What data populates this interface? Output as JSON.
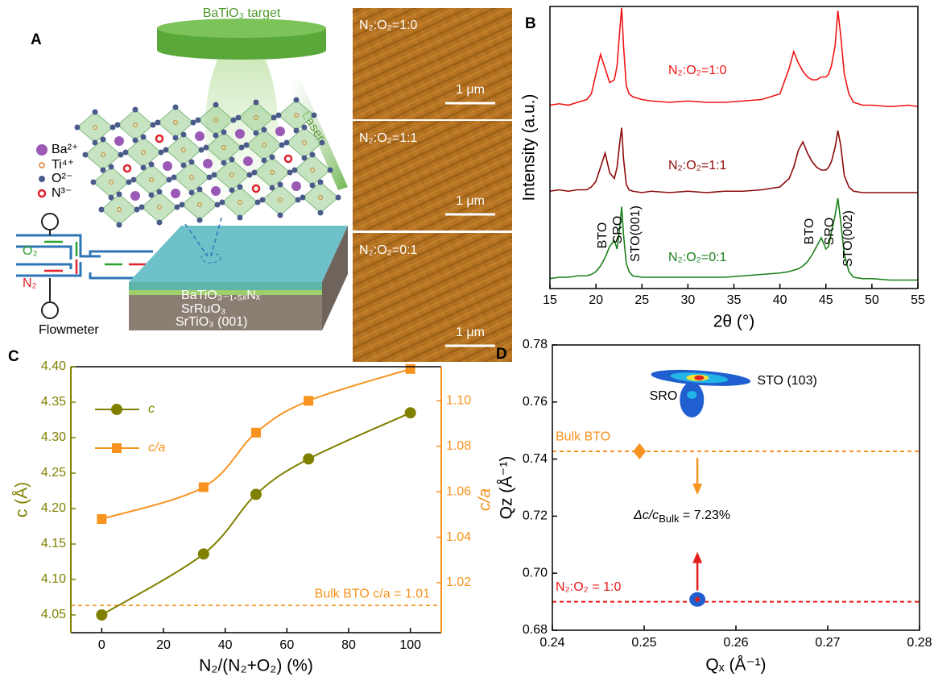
{
  "panel_a": {
    "label": "A",
    "target": "BaTiO₃ target",
    "laser": "Laser",
    "ions": [
      "Ba²⁺",
      "Ti⁴⁺",
      "O²⁻",
      "N³⁻"
    ],
    "gases": [
      "O₂",
      "N₂"
    ],
    "flowmeter": "Flowmeter",
    "layers": [
      "BaTiO₃₋₁.₅ₓNₓ",
      "SrRuO₃",
      "SrTiO₃ (001)"
    ]
  },
  "afm": [
    {
      "label": "N₂:O₂=1:0",
      "scale": "1 μm"
    },
    {
      "label": "N₂:O₂=1:1",
      "scale": "1 μm"
    },
    {
      "label": "N₂:O₂=0:1",
      "scale": "1 μm"
    }
  ],
  "chart_data": [
    {
      "type": "line",
      "label": "B",
      "xlabel": "2θ (°)",
      "ylabel": "Intensity (a.u.)",
      "xlim": [
        15,
        55
      ],
      "xticks": [
        15,
        20,
        25,
        30,
        35,
        40,
        45,
        50,
        55
      ],
      "ylim": [
        0,
        10
      ],
      "x": [
        15,
        16,
        17,
        18,
        19,
        19.5,
        20,
        20.5,
        21,
        21.5,
        22,
        22.3,
        22.6,
        22.8,
        23,
        23.3,
        23.6,
        24,
        25,
        26,
        28,
        30,
        32,
        34,
        36,
        38,
        40,
        41,
        41.5,
        42,
        42.5,
        43,
        43.5,
        44,
        44.5,
        45,
        45.3,
        45.6,
        46,
        46.3,
        46.6,
        47,
        47.5,
        48,
        49,
        50,
        52,
        54,
        55
      ],
      "series": [
        {
          "name": "N₂:O₂=1:0",
          "color": "#f01414",
          "values": [
            6.5,
            6.55,
            6.5,
            6.6,
            6.7,
            6.9,
            7.6,
            8.3,
            7.8,
            7.3,
            7.4,
            7.9,
            9.2,
            9.95,
            8.6,
            7.2,
            6.9,
            6.8,
            6.7,
            6.65,
            6.6,
            6.65,
            6.6,
            6.6,
            6.65,
            6.7,
            6.9,
            7.8,
            8.4,
            8.0,
            7.7,
            7.5,
            7.4,
            7.4,
            7.5,
            7.5,
            7.6,
            7.9,
            8.6,
            9.85,
            9.0,
            7.6,
            6.9,
            6.6,
            6.5,
            6.5,
            6.45,
            6.5,
            6.45
          ]
        },
        {
          "name": "N₂:O₂=1:1",
          "color": "#8b0a0a",
          "values": [
            3.45,
            3.5,
            3.45,
            3.5,
            3.5,
            3.6,
            3.8,
            4.3,
            4.8,
            4.1,
            3.9,
            4.3,
            5.2,
            5.7,
            4.6,
            3.7,
            3.5,
            3.45,
            3.4,
            3.45,
            3.4,
            3.45,
            3.4,
            3.45,
            3.45,
            3.5,
            3.6,
            3.9,
            4.3,
            4.9,
            5.2,
            4.8,
            4.5,
            4.3,
            4.2,
            4.2,
            4.3,
            4.5,
            5.0,
            5.6,
            5.1,
            4.0,
            3.6,
            3.45,
            3.4,
            3.4,
            3.4,
            3.4,
            3.4
          ]
        },
        {
          "name": "N₂:O₂=0:1",
          "color": "#1a801a",
          "values": [
            0.35,
            0.4,
            0.4,
            0.45,
            0.45,
            0.5,
            0.6,
            0.8,
            1.1,
            1.5,
            1.7,
            1.4,
            2.2,
            2.9,
            1.9,
            0.9,
            0.6,
            0.45,
            0.4,
            0.4,
            0.4,
            0.4,
            0.4,
            0.4,
            0.45,
            0.5,
            0.55,
            0.6,
            0.65,
            0.7,
            0.8,
            0.95,
            1.2,
            1.5,
            1.8,
            1.4,
            1.5,
            2.0,
            2.6,
            3.2,
            2.4,
            1.2,
            0.6,
            0.4,
            0.35,
            0.35,
            0.3,
            0.3,
            0.3
          ]
        }
      ],
      "peak_labels": [
        "BTO",
        "SRO",
        "STO(001)",
        "BTO",
        "SRO",
        "STO(002)"
      ]
    },
    {
      "type": "dual-line",
      "label": "C",
      "xlabel": "N₂/(N₂+O₂) (%)",
      "ylabel": "c (Å)",
      "y2label": "c/a",
      "xlim": [
        -10,
        110
      ],
      "xticks": [
        0,
        20,
        40,
        60,
        80,
        100
      ],
      "ylim": [
        4.025,
        4.4
      ],
      "yticks": [
        4.05,
        {
          "value": 4.1,
          "label": "4.10"
        },
        4.15,
        {
          "value": 4.2,
          "label": "4.20"
        },
        4.25,
        {
          "value": 4.3,
          "label": "4.30"
        },
        4.35,
        {
          "value": 4.4,
          "label": "4.40"
        }
      ],
      "y2lim": [
        0.998,
        1.115
      ],
      "y2ticks": [
        1.02,
        1.04,
        1.06,
        1.08,
        {
          "value": 1.1,
          "label": "1.10"
        }
      ],
      "x": [
        0,
        33,
        50,
        67,
        100
      ],
      "series": [
        {
          "name": "c",
          "color": "#808000",
          "marker": "circle",
          "values": [
            4.05,
            4.136,
            4.22,
            4.27,
            4.335
          ]
        },
        {
          "name": "c/a",
          "color": "#f7931e",
          "marker": "square",
          "axis": "y2",
          "values": [
            1.048,
            1.062,
            1.086,
            1.1,
            1.114
          ]
        }
      ],
      "legend": "upper left",
      "annotation": {
        "text": "Bulk BTO c/a = 1.01",
        "y2": 1.01
      }
    },
    {
      "type": "scatter",
      "label": "D",
      "xlabel": "Qₓ (Å⁻¹)",
      "ylabel": "Qz (Å⁻¹)",
      "xlim": [
        0.24,
        0.28
      ],
      "xticks": [
        0.24,
        0.25,
        0.26,
        0.27,
        0.28
      ],
      "ylim": [
        0.68,
        0.78
      ],
      "yticks": [
        0.68,
        {
          "value": 0.7,
          "label": "0.70"
        },
        0.72,
        0.74,
        0.76,
        0.78
      ],
      "peaks": [
        {
          "name": "STO (103)",
          "x": 0.256,
          "y": 0.7685
        },
        {
          "name": "SRO",
          "x": 0.2552,
          "y": 0.7625
        }
      ],
      "film": {
        "x": 0.2558,
        "y": 0.6908
      },
      "hlines": [
        {
          "name": "Bulk BTO",
          "x": 0.2495,
          "y": 0.7427,
          "color": "#f7931e"
        },
        {
          "name": "N₂:O₂ = 1:0",
          "y": 0.69,
          "color": "#e8191a"
        }
      ],
      "annotation": {
        "text": "Δc/c",
        "sub": "Bulk",
        "rest": " = 7.23%"
      }
    }
  ]
}
